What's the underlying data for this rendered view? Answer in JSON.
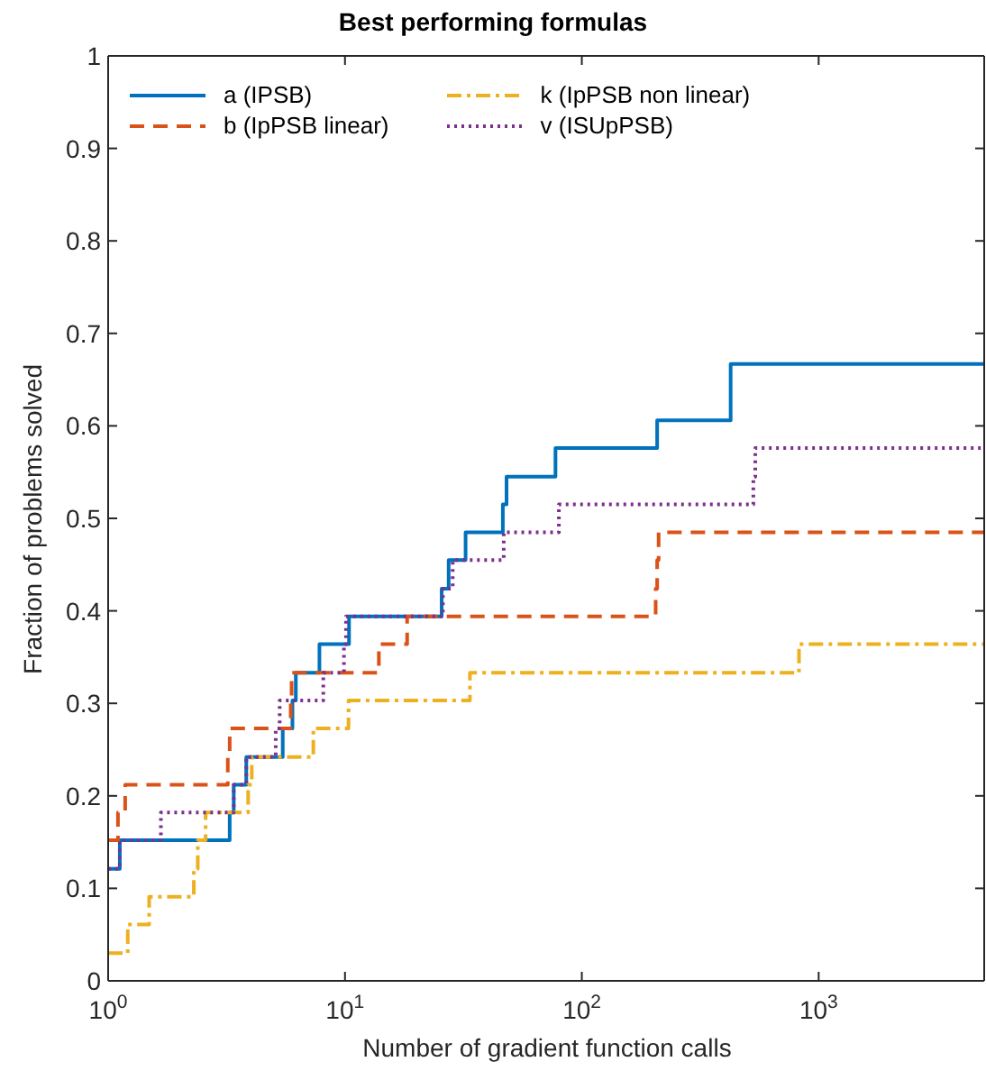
{
  "chart_data": {
    "type": "step",
    "title": "Best performing formulas",
    "xlabel": "Number of gradient function calls",
    "ylabel": "Fraction of problems solved",
    "log": "x",
    "xlim": [
      1,
      5000
    ],
    "ylim": [
      0,
      1
    ],
    "xticks": [
      {
        "value": 1,
        "label": "10$^{0}$"
      },
      {
        "value": 10,
        "label": "10$^{1}$"
      },
      {
        "value": 100,
        "label": "10$^{2}$"
      },
      {
        "value": 1000,
        "label": "10$^{3}$"
      }
    ],
    "yticks": [
      0,
      0.1,
      0.2,
      0.3,
      0.4,
      0.5,
      0.6,
      0.7,
      0.8,
      0.9,
      1
    ],
    "legend": "top left",
    "series": [
      {
        "name": "a (IPSB)",
        "color": "#0072bd",
        "line_style": "solid",
        "x": [
          1,
          1.12,
          3.26,
          3.39,
          3.83,
          5.46,
          6.0,
          6.2,
          7.8,
          10.4,
          25.6,
          27.4,
          32.3,
          46.4,
          48.1,
          77.4,
          208,
          425,
          5000
        ],
        "values": [
          0.121,
          0.152,
          0.182,
          0.212,
          0.242,
          0.273,
          0.303,
          0.333,
          0.364,
          0.394,
          0.424,
          0.455,
          0.485,
          0.515,
          0.545,
          0.576,
          0.606,
          0.667,
          0.667
        ]
      },
      {
        "name": "b (IpPSB linear)",
        "color": "#d95319",
        "line_style": "dashed",
        "x": [
          1,
          1.1,
          1.18,
          3.2,
          3.26,
          5.9,
          5.95,
          13.9,
          18.3,
          205,
          208,
          211,
          5000
        ],
        "values": [
          0.152,
          0.182,
          0.212,
          0.242,
          0.273,
          0.303,
          0.333,
          0.364,
          0.394,
          0.424,
          0.455,
          0.485,
          0.485
        ]
      },
      {
        "name": "k (IpPSB non linear)",
        "color": "#edb120",
        "line_style": "dashdot",
        "x": [
          1,
          1.21,
          1.49,
          2.3,
          2.39,
          2.58,
          3.9,
          4.04,
          7.35,
          10.35,
          33.7,
          826,
          5000
        ],
        "values": [
          0.03,
          0.061,
          0.091,
          0.121,
          0.152,
          0.182,
          0.212,
          0.242,
          0.273,
          0.303,
          0.333,
          0.364,
          0.364
        ]
      },
      {
        "name": "v (ISUpPSB)",
        "color": "#7e2f8e",
        "line_style": "dotted",
        "x": [
          1,
          1.12,
          1.67,
          3.39,
          3.83,
          5.1,
          5.3,
          8.1,
          9.9,
          10.1,
          25.9,
          28.5,
          46.8,
          80,
          530,
          540,
          5000
        ],
        "values": [
          0.121,
          0.152,
          0.182,
          0.212,
          0.242,
          0.273,
          0.303,
          0.333,
          0.364,
          0.394,
          0.424,
          0.455,
          0.485,
          0.515,
          0.545,
          0.576,
          0.576
        ]
      }
    ]
  }
}
